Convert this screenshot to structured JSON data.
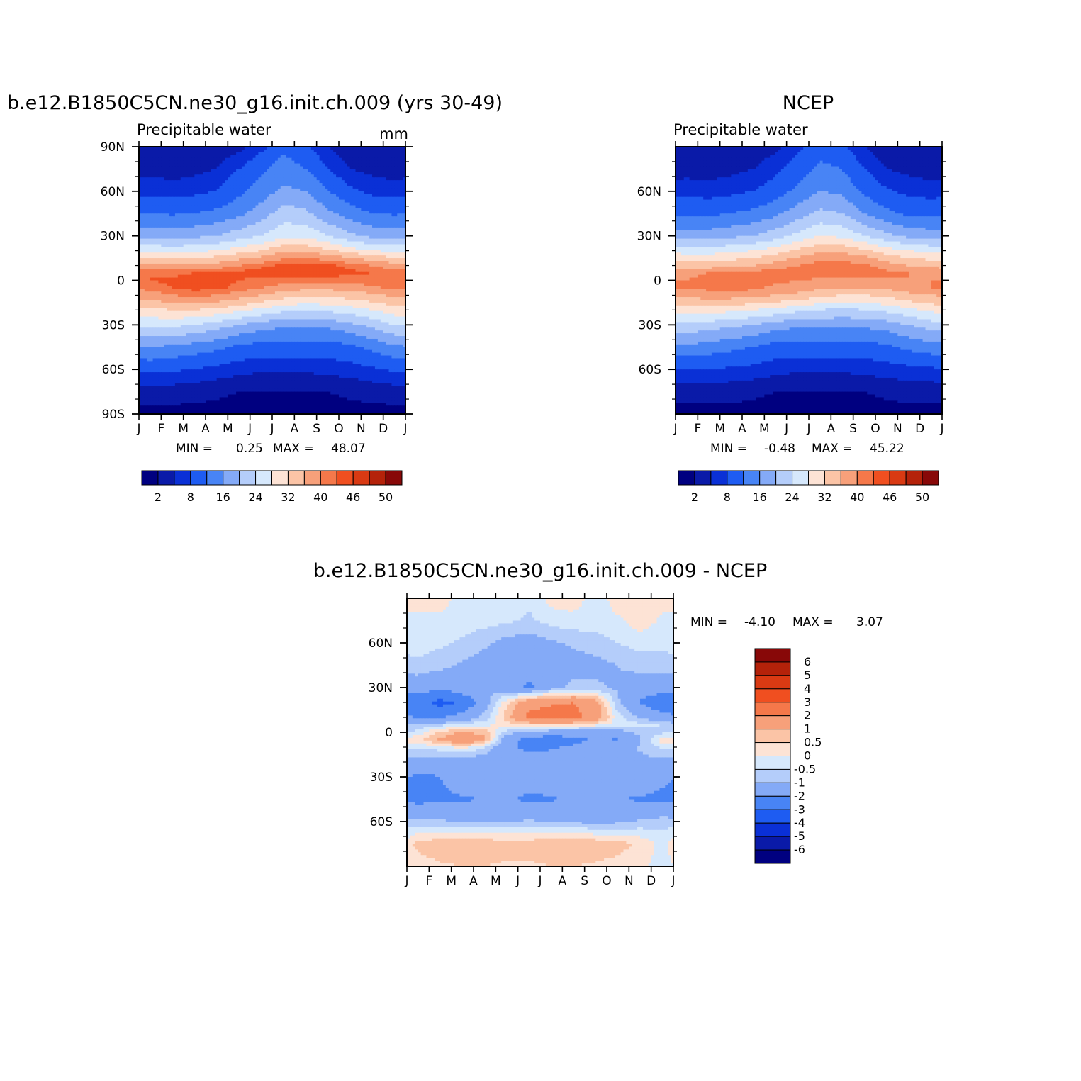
{
  "colors": {
    "levels": [
      "#000080",
      "#0a1aa8",
      "#0a30d6",
      "#1e5cf2",
      "#4884f5",
      "#84aaf7",
      "#b4cdfa",
      "#d6e8fc",
      "#fde3d5",
      "#fbc4a6",
      "#f7a07a",
      "#f5784a",
      "#f04f20",
      "#d93a13",
      "#b4220a",
      "#880808"
    ]
  },
  "chart_data": [
    {
      "type": "heatmap",
      "title": "b.e12.B1850C5CN.ne30_g16.init.ch.009 (yrs 30-49)",
      "left_string": "Precipitable water",
      "right_string": "mm",
      "x_ticks": [
        "J",
        "F",
        "M",
        "A",
        "M",
        "J",
        "J",
        "A",
        "S",
        "O",
        "N",
        "D",
        "J"
      ],
      "y_ticks": [
        "90N",
        "60N",
        "30N",
        "0",
        "30S",
        "60S",
        "90S"
      ],
      "y_range": [
        -90,
        90
      ],
      "stats": {
        "min_label": "MIN =",
        "min": "0.25",
        "max_label": "MAX =",
        "max": "48.07"
      },
      "colorbar_labels": [
        "2",
        "8",
        "16",
        "24",
        "32",
        "40",
        "46",
        "50"
      ],
      "contour_levels": [
        2,
        5,
        8,
        12,
        16,
        20,
        24,
        28,
        32,
        36,
        40,
        43,
        46,
        48,
        50
      ],
      "months": [
        "J",
        "F",
        "M",
        "A",
        "M",
        "J",
        "J",
        "A",
        "S",
        "O",
        "N",
        "D"
      ],
      "lats": [
        90,
        75,
        60,
        45,
        30,
        20,
        10,
        5,
        0,
        -5,
        -10,
        -20,
        -30,
        -45,
        -60,
        -75,
        -90
      ],
      "grid": [
        [
          3,
          2.5,
          2.5,
          3,
          4,
          7,
          11,
          9,
          5,
          3,
          2.5,
          2.5
        ],
        [
          4,
          3.5,
          4,
          5,
          8,
          11,
          14,
          12,
          8,
          5,
          4,
          3.5
        ],
        [
          7,
          6.5,
          7,
          8,
          11,
          14,
          17,
          16,
          12,
          9,
          7,
          6.5
        ],
        [
          12,
          11.5,
          12,
          13,
          15,
          18,
          22,
          21,
          17,
          14,
          12,
          11.5
        ],
        [
          19,
          18.5,
          19,
          20,
          22,
          24,
          27,
          27,
          24,
          21,
          19,
          18.5
        ],
        [
          27,
          26.5,
          27,
          28,
          30,
          32,
          35,
          35,
          33,
          30,
          28,
          27
        ],
        [
          38,
          37,
          37,
          38,
          40,
          42,
          44,
          45,
          44,
          42,
          40,
          38
        ],
        [
          43,
          42,
          43,
          43,
          44,
          45,
          46,
          46,
          45,
          44,
          43,
          42
        ],
        [
          43,
          44,
          44,
          44,
          43,
          42,
          42,
          41,
          41,
          41,
          42,
          43
        ],
        [
          41,
          43,
          44,
          44,
          42,
          40,
          38,
          37,
          37,
          38,
          39,
          41
        ],
        [
          38,
          40,
          41,
          40,
          38,
          36,
          34,
          33,
          33,
          34,
          35,
          37
        ],
        [
          31,
          32,
          32,
          31,
          29,
          27,
          25,
          24,
          25,
          26,
          28,
          30
        ],
        [
          25,
          25,
          24,
          22,
          20,
          18,
          17,
          17,
          17,
          19,
          21,
          24
        ],
        [
          16,
          15,
          14,
          13,
          11,
          10,
          10,
          10,
          10,
          11,
          13,
          15
        ],
        [
          9,
          8.5,
          8,
          7,
          6,
          5.5,
          5.5,
          5.5,
          6,
          6.5,
          7.5,
          8.5
        ],
        [
          3.5,
          3.5,
          3,
          2.5,
          2,
          2,
          2,
          2,
          2,
          2.5,
          3,
          3.5
        ],
        [
          1,
          1,
          1,
          1,
          1,
          1,
          1,
          1,
          1,
          1,
          1,
          1
        ]
      ]
    },
    {
      "type": "heatmap",
      "title": "NCEP",
      "left_string": "Precipitable water",
      "x_ticks": [
        "J",
        "F",
        "M",
        "A",
        "M",
        "J",
        "J",
        "A",
        "S",
        "O",
        "N",
        "D",
        "J"
      ],
      "y_ticks": [
        "60N",
        "30N",
        "0",
        "30S",
        "60S"
      ],
      "y_range": [
        -90,
        90
      ],
      "stats": {
        "min_label": "MIN =",
        "min": "-0.48",
        "max_label": "MAX =",
        "max": "45.22"
      },
      "colorbar_labels": [
        "2",
        "8",
        "16",
        "24",
        "32",
        "40",
        "46",
        "50"
      ],
      "contour_levels": [
        2,
        5,
        8,
        12,
        16,
        20,
        24,
        28,
        32,
        36,
        40,
        43,
        46,
        48,
        50
      ],
      "months": [
        "J",
        "F",
        "M",
        "A",
        "M",
        "J",
        "J",
        "A",
        "S",
        "O",
        "N",
        "D"
      ],
      "lats": [
        90,
        75,
        60,
        45,
        30,
        20,
        10,
        5,
        0,
        -5,
        -10,
        -20,
        -30,
        -45,
        -60,
        -75,
        -90
      ],
      "grid": [
        [
          2.5,
          2,
          2.5,
          3,
          4,
          7,
          10,
          9,
          5,
          3,
          2.5,
          2
        ],
        [
          3.5,
          3.5,
          4,
          5,
          7,
          10,
          13,
          12,
          8,
          5,
          4,
          3.5
        ],
        [
          7,
          6.5,
          7,
          8,
          10,
          13,
          16,
          15,
          11,
          8.5,
          7,
          6.5
        ],
        [
          11,
          11,
          12,
          13,
          15,
          18,
          21,
          20,
          16,
          13,
          11,
          11
        ],
        [
          18,
          18,
          19,
          20,
          22,
          25,
          28,
          27,
          24,
          21,
          19,
          18
        ],
        [
          26,
          26,
          27,
          28,
          30,
          33,
          35,
          35,
          33,
          30,
          28,
          27
        ],
        [
          34,
          34,
          35,
          36,
          38,
          40,
          42,
          42,
          41,
          38,
          36,
          35
        ],
        [
          39,
          40,
          40,
          41,
          42,
          42,
          43,
          43,
          43,
          41,
          40,
          39
        ],
        [
          40,
          41,
          42,
          42,
          41,
          40,
          39,
          39,
          39,
          39,
          40,
          40
        ],
        [
          40,
          41,
          42,
          41,
          39,
          38,
          37,
          36,
          36,
          37,
          38,
          40
        ],
        [
          37,
          38,
          38,
          37,
          36,
          35,
          33,
          32,
          32,
          33,
          35,
          36
        ],
        [
          30,
          30,
          29,
          28,
          27,
          25,
          24,
          23,
          24,
          25,
          27,
          29
        ],
        [
          23,
          22,
          21,
          20,
          18,
          17,
          17,
          17,
          17,
          18,
          20,
          22
        ],
        [
          15,
          14,
          13,
          12,
          10,
          10,
          10,
          10,
          10,
          11,
          13,
          14
        ],
        [
          8,
          8,
          7.5,
          7,
          6,
          5.5,
          5.5,
          5.5,
          6,
          6.5,
          7,
          7.5
        ],
        [
          3,
          3,
          3,
          2.5,
          2,
          2,
          2,
          2,
          2,
          2.5,
          3,
          3
        ],
        [
          1,
          1,
          1,
          1,
          1,
          1,
          1,
          1,
          1,
          1,
          1,
          1
        ]
      ]
    },
    {
      "type": "heatmap",
      "title": "b.e12.B1850C5CN.ne30_g16.init.ch.009 - NCEP",
      "x_ticks": [
        "J",
        "F",
        "M",
        "A",
        "M",
        "J",
        "J",
        "A",
        "S",
        "O",
        "N",
        "D",
        "J"
      ],
      "y_ticks": [
        "60N",
        "30N",
        "0",
        "30S",
        "60S"
      ],
      "y_range": [
        -90,
        90
      ],
      "stats": {
        "min_label": "MIN =",
        "min": "-4.10",
        "max_label": "MAX =",
        "max": "3.07"
      },
      "colorbar_labels": [
        "6",
        "5",
        "4",
        "3",
        "2",
        "1",
        "0.5",
        "0",
        "-0.5",
        "-1",
        "-2",
        "-3",
        "-4",
        "-5",
        "-6"
      ],
      "contour_levels": [
        -6,
        -5,
        -4,
        -3,
        -2,
        -1,
        -0.5,
        0,
        0.5,
        1,
        2,
        3,
        4,
        5,
        6
      ],
      "months": [
        "J",
        "F",
        "M",
        "A",
        "M",
        "J",
        "J",
        "A",
        "S",
        "O",
        "N",
        "D"
      ],
      "lats": [
        90,
        75,
        60,
        45,
        30,
        20,
        10,
        5,
        0,
        -5,
        -10,
        -20,
        -30,
        -45,
        -60,
        -75,
        -90
      ],
      "grid": [
        [
          0.3,
          0.2,
          -0.2,
          -0.3,
          -0.2,
          -0.4,
          0.2,
          0.3,
          -0.3,
          0.3,
          0.5,
          0.2
        ],
        [
          -0.2,
          -0.1,
          -0.2,
          -0.3,
          -0.4,
          -0.6,
          -0.3,
          -0.2,
          -0.3,
          -0.1,
          0.3,
          -0.1
        ],
        [
          -0.3,
          -0.4,
          -0.6,
          -0.9,
          -1.2,
          -1.3,
          -1.1,
          -0.9,
          -0.7,
          -0.5,
          -0.3,
          -0.4
        ],
        [
          -0.6,
          -0.8,
          -1.1,
          -1.3,
          -1.5,
          -1.6,
          -1.4,
          -1.3,
          -1.2,
          -1.0,
          -0.8,
          -0.7
        ],
        [
          -1.5,
          -1.8,
          -1.3,
          -1.1,
          -1.6,
          -2.2,
          -1.3,
          -0.8,
          -0.9,
          -1.1,
          -1.4,
          -1.6
        ],
        [
          -2.6,
          -3.3,
          -2.9,
          -1.4,
          0.4,
          1.7,
          1.9,
          2.0,
          1.4,
          -0.9,
          -2.1,
          -2.7
        ],
        [
          -2.1,
          -2.1,
          -1.6,
          -0.8,
          0.8,
          2.2,
          2.4,
          2.3,
          1.6,
          -0.3,
          -1.1,
          -1.6
        ],
        [
          -0.8,
          -0.6,
          -0.3,
          -0.1,
          0.2,
          0.5,
          0.6,
          0.4,
          0.1,
          -0.2,
          -0.3,
          -0.5
        ],
        [
          -0.4,
          0.6,
          1.0,
          0.8,
          -0.7,
          -1.2,
          -1.4,
          -1.6,
          -1.5,
          -1.3,
          -0.8,
          -0.7
        ],
        [
          0.4,
          1.1,
          1.9,
          1.1,
          -1.6,
          -2.4,
          -2.6,
          -2.2,
          -1.9,
          -2.1,
          -1.1,
          0.3
        ],
        [
          -0.4,
          -0.2,
          0.2,
          -0.5,
          -1.8,
          -2.2,
          -2.1,
          -1.9,
          -1.6,
          -1.4,
          -0.9,
          -0.4
        ],
        [
          -1.3,
          -1.5,
          -1.5,
          -1.5,
          -1.6,
          -1.7,
          -1.6,
          -1.5,
          -1.4,
          -1.3,
          -1.2,
          -1.2
        ],
        [
          -2.2,
          -2.0,
          -1.4,
          -1.2,
          -1.3,
          -1.5,
          -1.4,
          -1.2,
          -1.0,
          -1.1,
          -1.3,
          -1.8
        ],
        [
          -2.3,
          -2.2,
          -2.1,
          -2.0,
          -1.9,
          -2.2,
          -2.1,
          -1.9,
          -1.9,
          -2.0,
          -2.1,
          -2.2
        ],
        [
          -0.8,
          -0.9,
          -1.0,
          -1.1,
          -1.0,
          -0.9,
          -1.0,
          -1.1,
          -1.2,
          -1.1,
          -0.9,
          -0.7
        ],
        [
          0.7,
          0.9,
          1.0,
          0.9,
          0.8,
          0.8,
          0.9,
          1.0,
          0.9,
          0.7,
          0.4,
          -0.2
        ],
        [
          0.2,
          0.4,
          0.5,
          0.5,
          0.4,
          0.4,
          0.5,
          0.5,
          0.4,
          0.3,
          0.1,
          -0.2
        ]
      ]
    }
  ]
}
